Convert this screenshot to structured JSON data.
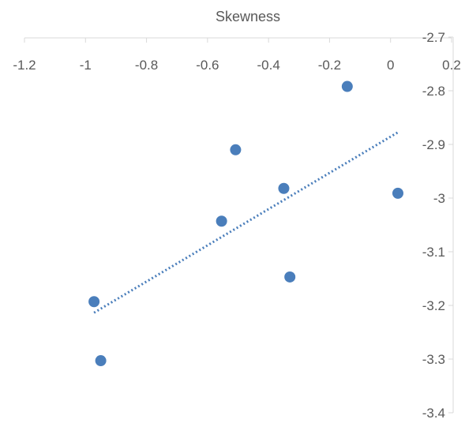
{
  "chart_data": {
    "type": "scatter",
    "title": "",
    "xlabel": "Skewness",
    "ylabel": "",
    "x_axis_position": "top",
    "y_axis_position": "right",
    "xlim": [
      -1.2,
      0.2
    ],
    "ylim": [
      -3.4,
      -2.7
    ],
    "x_ticks": [
      "-1.2",
      "-1",
      "-0.8",
      "-0.6",
      "-0.4",
      "-0.2",
      "0",
      "0.2"
    ],
    "y_ticks": [
      "-2.7",
      "-2.8",
      "-2.9",
      "-3",
      "-3.1",
      "-3.2",
      "-3.3",
      "-3.4"
    ],
    "grid": false,
    "series": [
      {
        "color": "#4a7ebb",
        "points": [
          {
            "x": -0.972,
            "y": -3.193
          },
          {
            "x": -0.95,
            "y": -3.303
          },
          {
            "x": -0.554,
            "y": -3.043
          },
          {
            "x": -0.508,
            "y": -2.91
          },
          {
            "x": -0.35,
            "y": -2.982
          },
          {
            "x": -0.33,
            "y": -3.147
          },
          {
            "x": -0.142,
            "y": -2.792
          },
          {
            "x": 0.024,
            "y": -2.991
          }
        ]
      }
    ],
    "trendline": {
      "type": "linear",
      "style": "dotted",
      "color": "#4a7ebb",
      "x_range": [
        -0.972,
        0.024
      ]
    }
  }
}
